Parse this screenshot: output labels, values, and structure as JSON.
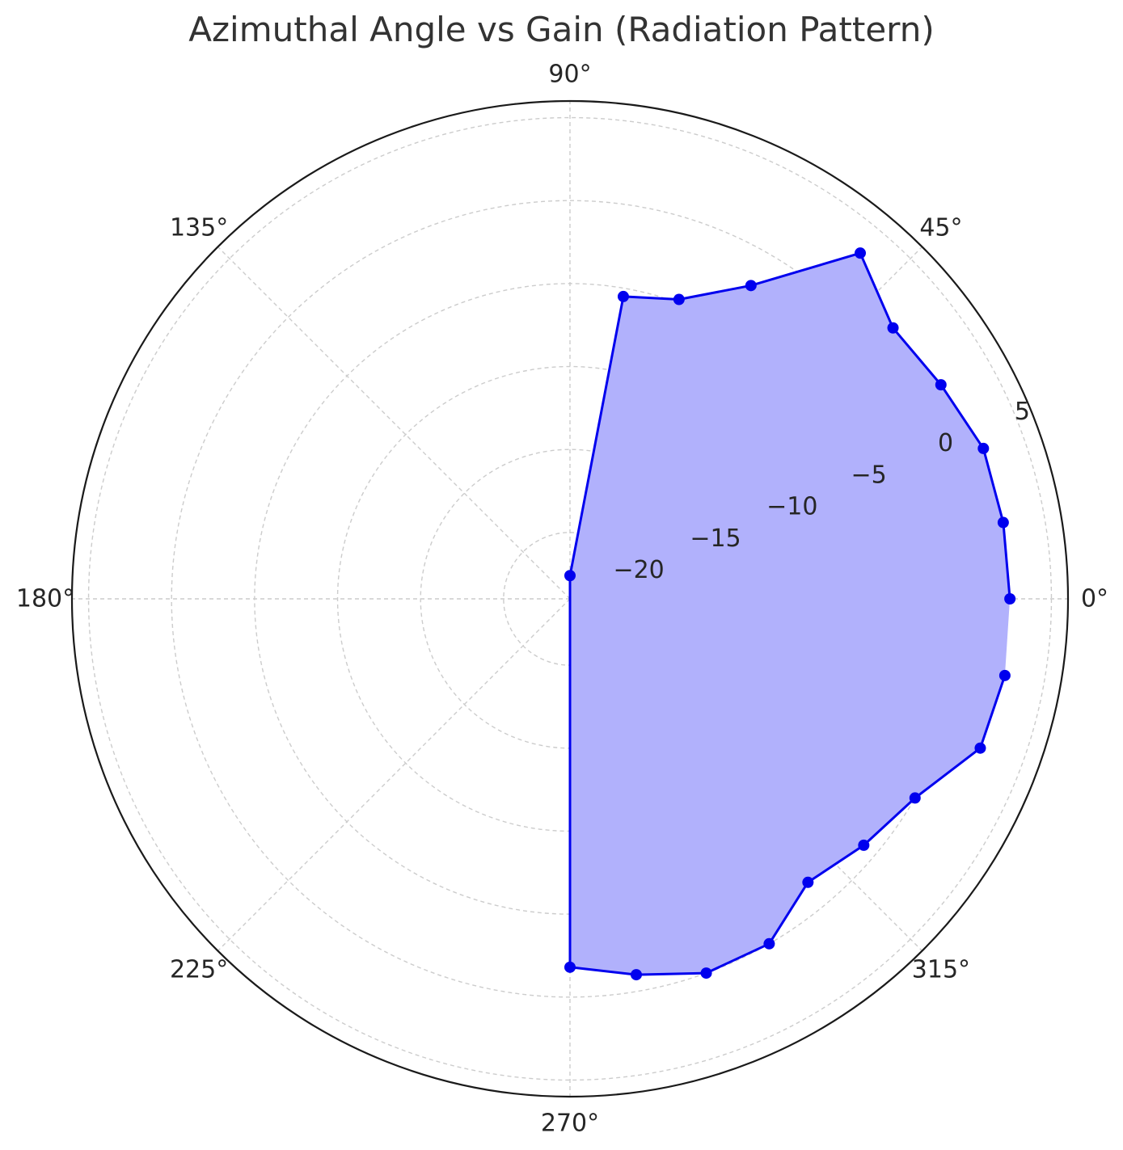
{
  "chart_data": {
    "type": "polar-line",
    "title": "Azimuthal Angle vs Gain (Radiation Pattern)",
    "angular_tick_labels": [
      "0°",
      "45°",
      "90°",
      "135°",
      "180°",
      "225°",
      "270°",
      "315°"
    ],
    "radial_tick_labels": [
      "−20",
      "−15",
      "−10",
      "−5",
      "0",
      "5"
    ],
    "radial_ticks": [
      -20,
      -15,
      -10,
      -5,
      0,
      5
    ],
    "rlim": [
      -24,
      6
    ],
    "grid": true,
    "series": [
      {
        "angles_deg": [
          0,
          10,
          20,
          30,
          40,
          50,
          60,
          70,
          80,
          90,
          270,
          280,
          290,
          300,
          310,
          320,
          330,
          340,
          350
        ],
        "gain": [
          2.5,
          2.5,
          2.5,
          1.8,
          1.4,
          3.2,
          -2.2,
          -4.8,
          -5.5,
          -22.6,
          -1.8,
          -1.0,
          0.0,
          0.0,
          -1.7,
          -0.9,
          0.0,
          2.3,
          2.6
        ],
        "line_color": "#0000ee",
        "fill_color": "#b1b1fc",
        "marker": "circle"
      }
    ]
  },
  "colors": {
    "grid": "#cccccc",
    "frame": "#1a1a1a",
    "text": "#262626",
    "title": "#333333"
  }
}
